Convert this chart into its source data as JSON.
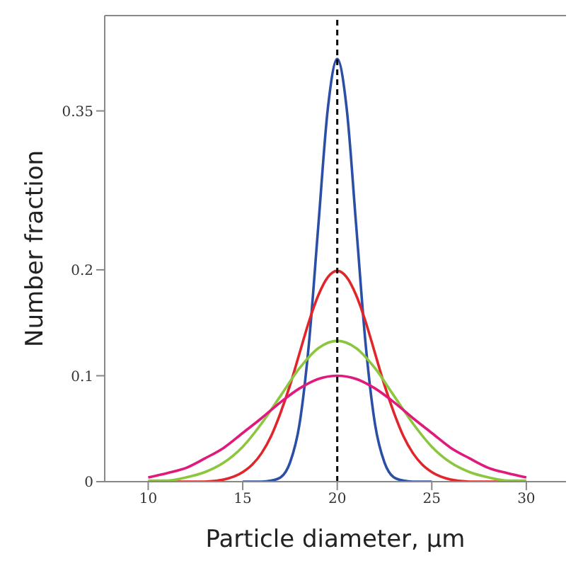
{
  "chart_data": {
    "type": "line",
    "xlabel": "Particle diameter, µm",
    "ylabel": "Number fraction",
    "xlim": [
      7.7,
      32.1
    ],
    "xticks": [
      10,
      15,
      20,
      25,
      30
    ],
    "ylim": [
      0,
      0.44
    ],
    "yticks": [
      0,
      0.1,
      0.2,
      0.35
    ],
    "grid": false,
    "marker": "none",
    "line_style": "solid",
    "ref_lines": [
      {
        "axis": "x",
        "value": 20,
        "color": "#000000",
        "line_style": "dashed"
      }
    ],
    "series": [
      {
        "color": "#2b4fa6",
        "x": [
          15,
          16,
          16.5,
          17,
          17.5,
          18,
          18.5,
          19,
          19.5,
          20,
          20.5,
          21,
          21.5,
          22,
          22.5,
          23,
          23.5,
          24,
          25
        ],
        "values": [
          0,
          0,
          0.001,
          0.004,
          0.018,
          0.054,
          0.13,
          0.242,
          0.352,
          0.399,
          0.352,
          0.242,
          0.13,
          0.054,
          0.018,
          0.004,
          0.001,
          0,
          0
        ]
      },
      {
        "color": "#e0262a",
        "x": [
          10,
          11,
          12,
          13,
          14,
          15,
          15.5,
          16,
          16.5,
          17,
          17.5,
          18,
          18.5,
          19,
          19.5,
          20,
          20.5,
          21,
          21.5,
          22,
          22.5,
          23,
          23.5,
          24,
          24.5,
          25,
          26,
          27,
          28,
          29,
          30
        ],
        "values": [
          0,
          0,
          0,
          0,
          0.002,
          0.009,
          0.016,
          0.027,
          0.043,
          0.065,
          0.091,
          0.121,
          0.151,
          0.176,
          0.193,
          0.199,
          0.193,
          0.176,
          0.151,
          0.121,
          0.091,
          0.065,
          0.043,
          0.027,
          0.016,
          0.009,
          0.002,
          0,
          0,
          0,
          0
        ]
      },
      {
        "color": "#8cc63f",
        "x": [
          10,
          11,
          12,
          13,
          14,
          15,
          16,
          17,
          18,
          19,
          20,
          21,
          22,
          23,
          24,
          25,
          26,
          27,
          28,
          29,
          30
        ],
        "values": [
          0.001,
          0.001,
          0.004,
          0.009,
          0.018,
          0.033,
          0.055,
          0.081,
          0.107,
          0.126,
          0.133,
          0.126,
          0.107,
          0.081,
          0.055,
          0.033,
          0.018,
          0.009,
          0.004,
          0.001,
          0.001
        ]
      },
      {
        "color": "#e0197d",
        "x": [
          10,
          11,
          12,
          13,
          14,
          15,
          16,
          17,
          18,
          19,
          20,
          21,
          22,
          23,
          24,
          25,
          26,
          27,
          28,
          29,
          30
        ],
        "values": [
          0.004,
          0.008,
          0.013,
          0.022,
          0.032,
          0.046,
          0.06,
          0.075,
          0.088,
          0.097,
          0.1,
          0.097,
          0.088,
          0.075,
          0.06,
          0.046,
          0.032,
          0.022,
          0.013,
          0.008,
          0.004
        ]
      }
    ]
  }
}
